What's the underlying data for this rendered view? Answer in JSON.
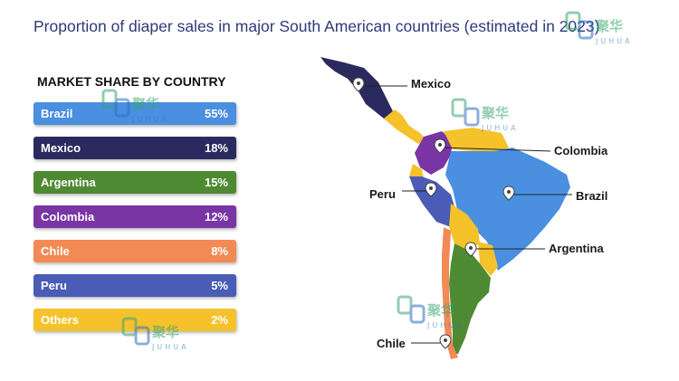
{
  "title": "Proportion of diaper sales in major South American countries (estimated in 2023)",
  "watermark": {
    "brand_cn": "聚华",
    "brand_en": "JUHUA"
  },
  "chart_data": {
    "type": "bar",
    "title": "MARKET SHARE BY COUNTRY",
    "categories": [
      "Brazil",
      "Mexico",
      "Argentina",
      "Colombia",
      "Chile",
      "Peru",
      "Others"
    ],
    "values": [
      55,
      18,
      15,
      12,
      8,
      5,
      2
    ],
    "value_labels": [
      "55%",
      "18%",
      "15%",
      "12%",
      "8%",
      "5%",
      "2%"
    ],
    "unit": "%",
    "colors": [
      "#4a8fe0",
      "#2b2a5e",
      "#4e8a32",
      "#7a35a5",
      "#f28a55",
      "#4a5cb5",
      "#f5c22c"
    ],
    "map_callouts": [
      "Mexico",
      "Colombia",
      "Peru",
      "Brazil",
      "Argentina",
      "Chile"
    ]
  }
}
